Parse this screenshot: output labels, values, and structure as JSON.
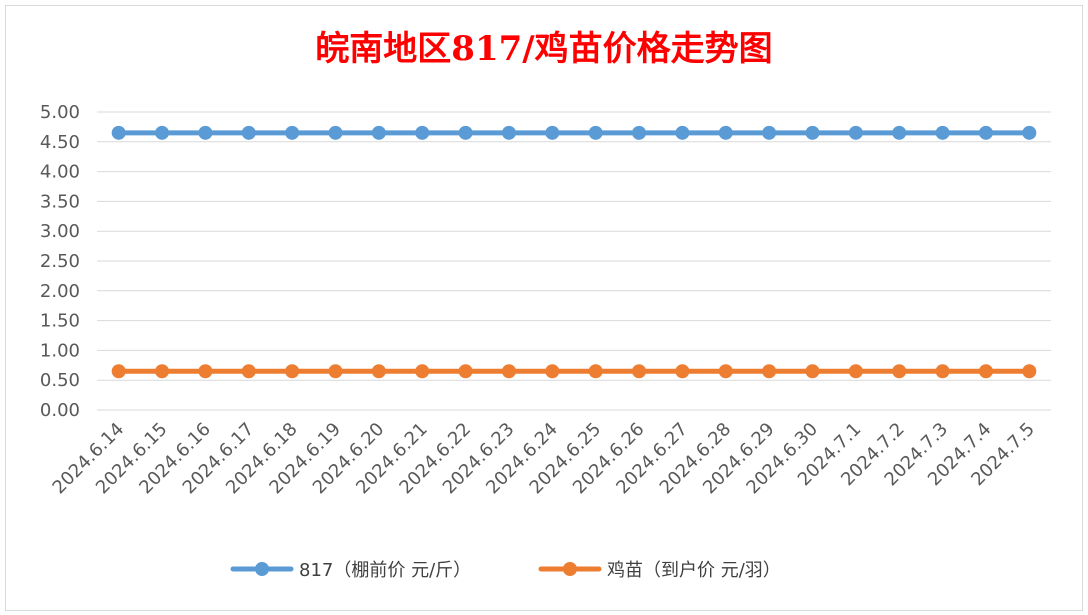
{
  "chart_data": {
    "type": "line",
    "title": "皖南地区817/鸡苗价格走势图",
    "categories": [
      "2024.6.14",
      "2024.6.15",
      "2024.6.16",
      "2024.6.17",
      "2024.6.18",
      "2024.6.19",
      "2024.6.20",
      "2024.6.21",
      "2024.6.22",
      "2024.6.23",
      "2024.6.24",
      "2024.6.25",
      "2024.6.26",
      "2024.6.27",
      "2024.6.28",
      "2024.6.29",
      "2024.6.30",
      "2024.7.1",
      "2024.7.2",
      "2024.7.3",
      "2024.7.4",
      "2024.7.5"
    ],
    "ylim": [
      0,
      5
    ],
    "yticks": [
      "0.00",
      "0.50",
      "1.00",
      "1.50",
      "2.00",
      "2.50",
      "3.00",
      "3.50",
      "4.00",
      "4.50",
      "5.00"
    ],
    "grid": true,
    "legend_position": "bottom",
    "series": [
      {
        "name": "817（棚前价 元/斤）",
        "color": "#5b9bd5",
        "values": [
          4.65,
          4.65,
          4.65,
          4.65,
          4.65,
          4.65,
          4.65,
          4.65,
          4.65,
          4.65,
          4.65,
          4.65,
          4.65,
          4.65,
          4.65,
          4.65,
          4.65,
          4.65,
          4.65,
          4.65,
          4.65,
          4.65
        ]
      },
      {
        "name": "鸡苗（到户价 元/羽）",
        "color": "#ed7d31",
        "values": [
          0.65,
          0.65,
          0.65,
          0.65,
          0.65,
          0.65,
          0.65,
          0.65,
          0.65,
          0.65,
          0.65,
          0.65,
          0.65,
          0.65,
          0.65,
          0.65,
          0.65,
          0.65,
          0.65,
          0.65,
          0.65,
          0.65
        ]
      }
    ]
  }
}
